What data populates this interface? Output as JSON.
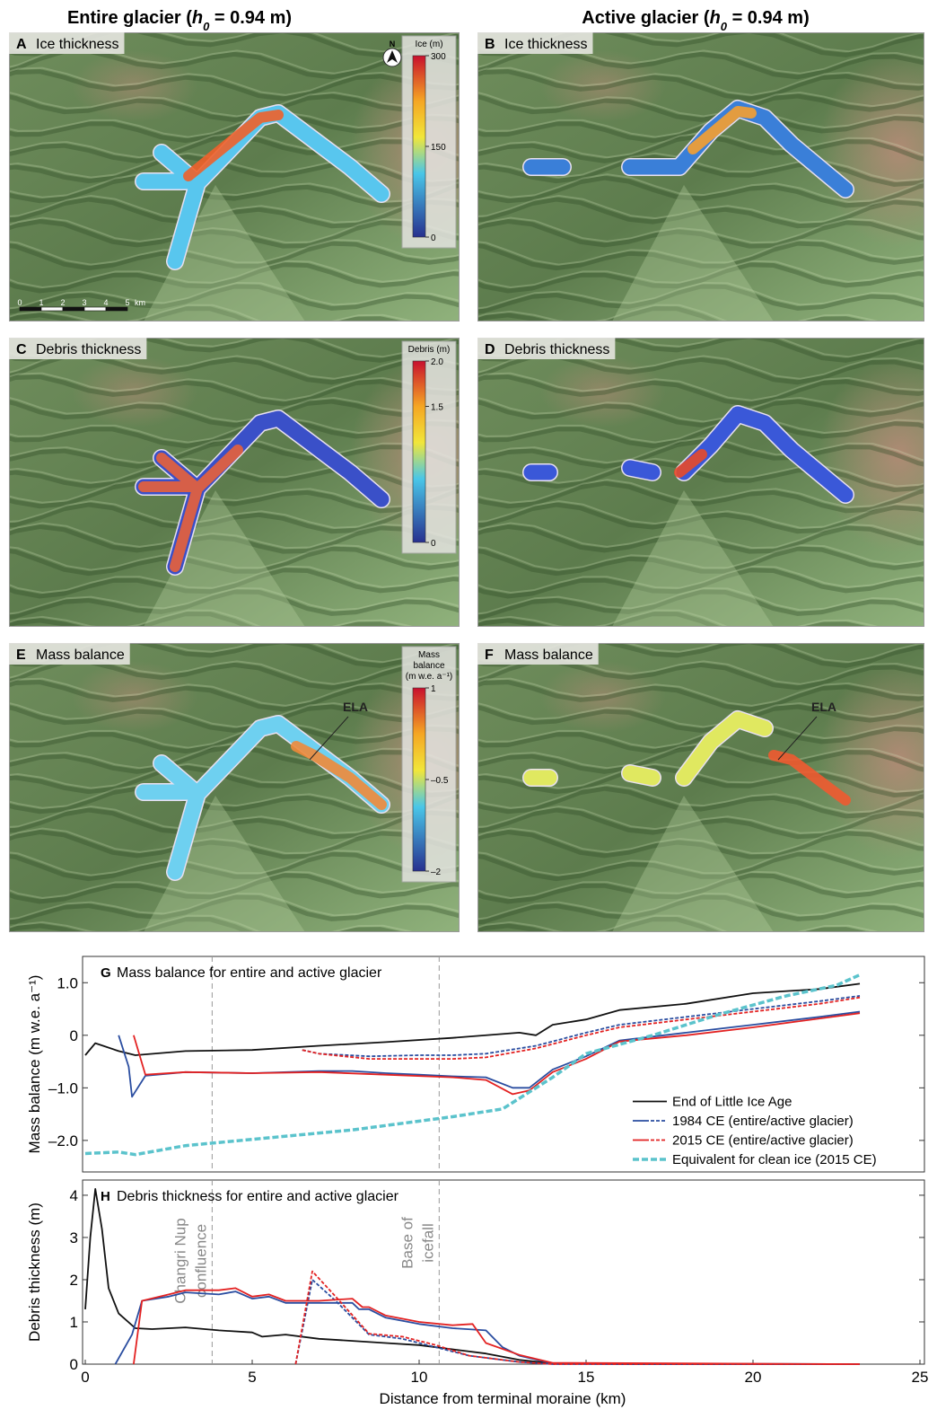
{
  "column_titles": [
    {
      "text": "Entire glacier (",
      "var": "h",
      "sub": "0",
      "rest": " = 0.94 m)"
    },
    {
      "text": "Active glacier (",
      "var": "h",
      "sub": "0",
      "rest": " = 0.94 m)"
    }
  ],
  "panels": [
    {
      "letter": "A",
      "label": "Ice thickness"
    },
    {
      "letter": "B",
      "label": "Ice thickness"
    },
    {
      "letter": "C",
      "label": "Debris thickness"
    },
    {
      "letter": "D",
      "label": "Debris thickness"
    },
    {
      "letter": "E",
      "label": "Mass balance"
    },
    {
      "letter": "F",
      "label": "Mass balance"
    }
  ],
  "north": "N",
  "scale_bar": {
    "ticks": [
      0,
      1,
      2,
      3,
      4,
      5
    ],
    "unit": "km"
  },
  "colorbars": [
    {
      "title": [
        "Ice (m)"
      ],
      "range": [
        0,
        300
      ],
      "ticks": [
        0,
        150,
        300
      ]
    },
    {
      "title": [
        "Debris (m)"
      ],
      "range": [
        0,
        2
      ],
      "ticks": [
        0,
        {
          "value": 1.5,
          "label": "1.5"
        },
        {
          "value": 2,
          "label": "2.0"
        }
      ]
    },
    {
      "title": [
        "Mass",
        "balance",
        "(m w.e. a⁻¹)"
      ],
      "range": [
        -2,
        1
      ],
      "ticks": [
        {
          "value": -2,
          "label": "–2"
        },
        {
          "value": -0.5,
          "label": "–0.5"
        },
        1
      ]
    }
  ],
  "ela": [
    "ELA",
    "ELA"
  ],
  "chart_data": [
    {
      "type": "line",
      "panel": "G",
      "title": "Mass balance for entire and active glacier",
      "ylabel": "Mass balance (m w.e. a⁻¹)",
      "xlim": [
        0,
        25
      ],
      "ylim": [
        -2.6,
        1.5
      ],
      "yticks": [
        {
          "value": -2,
          "label": "–2.0"
        },
        {
          "value": -1,
          "label": "–1.0"
        },
        0,
        {
          "value": 1,
          "label": "1.0"
        }
      ],
      "vlines": [
        3.8,
        10.6
      ],
      "legend": "lower right",
      "series": [
        {
          "name": "End of Little Ice Age",
          "color": "#111111",
          "line_style": "solid",
          "x": [
            0,
            0.3,
            1,
            1.5,
            3,
            5,
            7,
            9,
            11,
            13,
            13.5,
            14,
            15,
            16,
            18,
            20,
            22,
            23.2
          ],
          "values": [
            -0.38,
            -0.15,
            -0.3,
            -0.38,
            -0.3,
            -0.28,
            -0.2,
            -0.13,
            -0.05,
            0.05,
            0.0,
            0.2,
            0.3,
            0.48,
            0.6,
            0.8,
            0.88,
            0.98
          ]
        },
        {
          "name": "1984 CE (entire/active glacier)",
          "color": "#2a4da0",
          "line_style": "solid",
          "x": [
            1,
            1.3,
            1.4,
            1.8,
            3,
            5,
            7,
            8,
            9,
            10,
            11,
            12,
            12.8,
            13.3,
            14,
            15,
            16,
            18,
            20,
            22,
            23.2
          ],
          "values": [
            0,
            -0.6,
            -1.17,
            -0.77,
            -0.7,
            -0.72,
            -0.68,
            -0.68,
            -0.72,
            -0.75,
            -0.78,
            -0.8,
            -1.0,
            -1.0,
            -0.65,
            -0.4,
            -0.1,
            0.05,
            0.2,
            0.35,
            0.45
          ],
          "x_active": [
            6.5,
            7,
            8.5,
            10,
            11,
            12,
            13.5,
            15,
            16,
            18,
            20,
            22,
            23.2
          ],
          "values_active": [
            -0.28,
            -0.35,
            -0.4,
            -0.38,
            -0.38,
            -0.35,
            -0.2,
            0.05,
            0.2,
            0.35,
            0.5,
            0.65,
            0.75
          ]
        },
        {
          "name": "2015 CE (entire/active glacier)",
          "color": "#e32222",
          "line_style": "solid",
          "x": [
            1.45,
            1.8,
            3,
            5,
            7,
            9,
            11,
            12,
            12.8,
            13.3,
            14,
            15,
            16,
            18,
            20,
            22,
            23.2
          ],
          "values": [
            0,
            -0.75,
            -0.7,
            -0.72,
            -0.7,
            -0.75,
            -0.8,
            -0.85,
            -1.12,
            -1.05,
            -0.7,
            -0.45,
            -0.12,
            0.0,
            0.15,
            0.32,
            0.42
          ],
          "x_active": [
            6.5,
            7,
            8.5,
            10,
            11,
            12,
            13.5,
            15,
            16,
            18,
            20,
            22,
            23.2
          ],
          "values_active": [
            -0.28,
            -0.35,
            -0.45,
            -0.45,
            -0.45,
            -0.42,
            -0.25,
            0.0,
            0.15,
            0.3,
            0.45,
            0.6,
            0.72
          ]
        },
        {
          "name": "Equivalent for clean ice (2015 CE)",
          "color": "#5bc3cc",
          "line_style": "dashed",
          "x": [
            0,
            1,
            1.5,
            3,
            5,
            8,
            11,
            12.5,
            14,
            15,
            17,
            19,
            21,
            22.5,
            23.2
          ],
          "values": [
            -2.25,
            -2.22,
            -2.27,
            -2.1,
            -1.98,
            -1.8,
            -1.55,
            -1.4,
            -0.8,
            -0.35,
            0.0,
            0.4,
            0.75,
            0.95,
            1.15
          ]
        }
      ]
    },
    {
      "type": "line",
      "panel": "H",
      "title": "Debris thickness for entire and active glacier",
      "ylabel": "Debris thickness (m)",
      "xlabel": "Distance from terminal moraine (km)",
      "xlim": [
        0,
        25
      ],
      "ylim": [
        0,
        4.36
      ],
      "xticks": [
        0,
        5,
        10,
        15,
        20,
        25
      ],
      "yticks": [
        0,
        1,
        2,
        3,
        4
      ],
      "vlines": [
        {
          "x": 3.8,
          "label": [
            "Changri Nup",
            "confluence"
          ]
        },
        {
          "x": 10.6,
          "label": [
            "Base of",
            "icefall"
          ]
        }
      ],
      "series": [
        {
          "color": "#111111",
          "line_style": "solid",
          "x": [
            0,
            0.15,
            0.3,
            0.5,
            0.7,
            1,
            1.5,
            2,
            3,
            4,
            5,
            5.3,
            6,
            7,
            8,
            9,
            10,
            11,
            12,
            13,
            14,
            16,
            23.2
          ],
          "values": [
            1.3,
            3,
            4.15,
            3.2,
            1.8,
            1.2,
            0.85,
            0.83,
            0.87,
            0.8,
            0.75,
            0.65,
            0.7,
            0.6,
            0.55,
            0.5,
            0.45,
            0.35,
            0.25,
            0.1,
            0.02,
            0.0,
            0.0
          ]
        },
        {
          "color": "#2a4da0",
          "line_style": "solid",
          "x": [
            0.9,
            1.4,
            1.7,
            2.5,
            3,
            4,
            4.5,
            5,
            5.5,
            6,
            7,
            8,
            8.2,
            8.5,
            9,
            10,
            11,
            12,
            12.5,
            13,
            14,
            23.2
          ],
          "values": [
            0,
            0.7,
            1.5,
            1.6,
            1.7,
            1.65,
            1.72,
            1.55,
            1.6,
            1.45,
            1.45,
            1.45,
            1.3,
            1.3,
            1.1,
            0.95,
            0.85,
            0.8,
            0.4,
            0.2,
            0.02,
            0.0
          ],
          "x_active": [
            6.3,
            6.8,
            7.5,
            8.5,
            9.5,
            10.5,
            11.5,
            13,
            14,
            23.2
          ],
          "values_active": [
            0,
            2.0,
            1.5,
            0.7,
            0.6,
            0.4,
            0.2,
            0.05,
            0.0,
            0.0
          ]
        },
        {
          "color": "#e32222",
          "line_style": "solid",
          "x": [
            1.45,
            1.7,
            2.5,
            3,
            4,
            4.5,
            5,
            5.5,
            6,
            7,
            8,
            8.3,
            8.5,
            9,
            10,
            11,
            11.6,
            12,
            13,
            14,
            23.2
          ],
          "values": [
            0,
            1.5,
            1.65,
            1.75,
            1.75,
            1.8,
            1.6,
            1.65,
            1.5,
            1.5,
            1.55,
            1.35,
            1.35,
            1.15,
            1.0,
            0.92,
            0.95,
            0.5,
            0.22,
            0.03,
            0.0
          ],
          "x_active": [
            6.3,
            6.8,
            7.5,
            8.5,
            9.5,
            10.5,
            11.5,
            13,
            14,
            23.2
          ],
          "values_active": [
            0,
            2.2,
            1.6,
            0.72,
            0.65,
            0.45,
            0.2,
            0.05,
            0.0,
            0.0
          ]
        }
      ]
    }
  ]
}
